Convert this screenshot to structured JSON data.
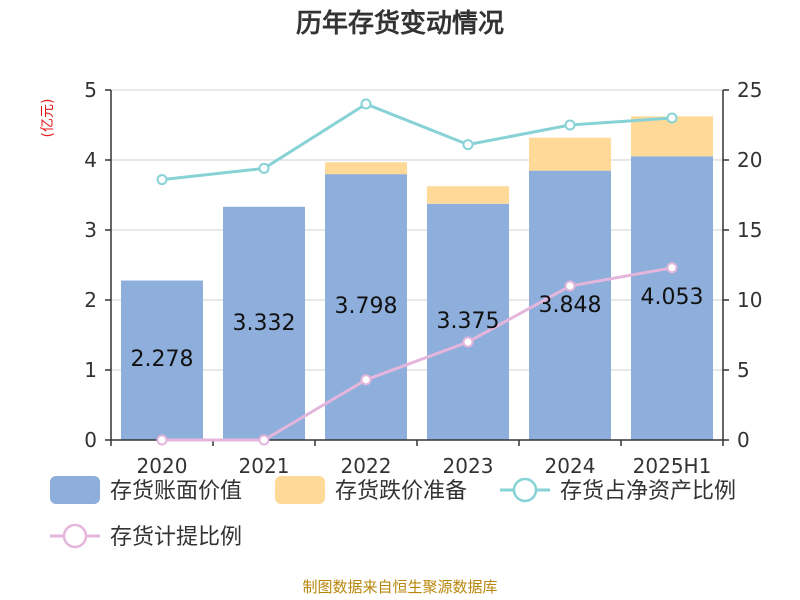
{
  "title": "历年存货变动情况",
  "unit_left": "(亿元)",
  "unit_right": "%",
  "source": "制图数据来自恒生聚源数据库",
  "colors": {
    "book_value": "#8eaedb",
    "impairment": "#fed998",
    "ratio_net_assets": "#86d2d6",
    "provision_ratio": "#e5b6dc",
    "axis": "#333333",
    "grid": "#d0d0d0"
  },
  "chart_data": {
    "type": "bar",
    "categories": [
      "2020",
      "2021",
      "2022",
      "2023",
      "2024",
      "2025H1"
    ],
    "y_left": {
      "min": 0,
      "max": 5,
      "ticks": [
        0,
        1,
        2,
        3,
        4,
        5
      ]
    },
    "y_right": {
      "min": 0,
      "max": 25,
      "ticks": [
        0,
        5,
        10,
        15,
        20,
        25
      ]
    },
    "grid": true,
    "legend_position": "bottom",
    "series": [
      {
        "name": "存货账面价值",
        "kind": "bar",
        "axis": "left",
        "stack": "inv",
        "values": [
          2.278,
          3.332,
          3.798,
          3.375,
          3.848,
          4.053
        ],
        "labels": [
          "2.278",
          "3.332",
          "3.798",
          "3.375",
          "3.848",
          "4.053"
        ]
      },
      {
        "name": "存货跌价准备",
        "kind": "bar",
        "axis": "left",
        "stack": "inv",
        "values": [
          0.0,
          0.0,
          0.17,
          0.25,
          0.47,
          0.57
        ]
      },
      {
        "name": "存货占净资产比例",
        "kind": "line",
        "axis": "right",
        "values": [
          18.6,
          19.4,
          24.0,
          21.1,
          22.5,
          23.0
        ]
      },
      {
        "name": "存货计提比例",
        "kind": "line",
        "axis": "right",
        "values": [
          0.0,
          0.0,
          4.3,
          7.0,
          11.0,
          12.3
        ]
      }
    ]
  }
}
